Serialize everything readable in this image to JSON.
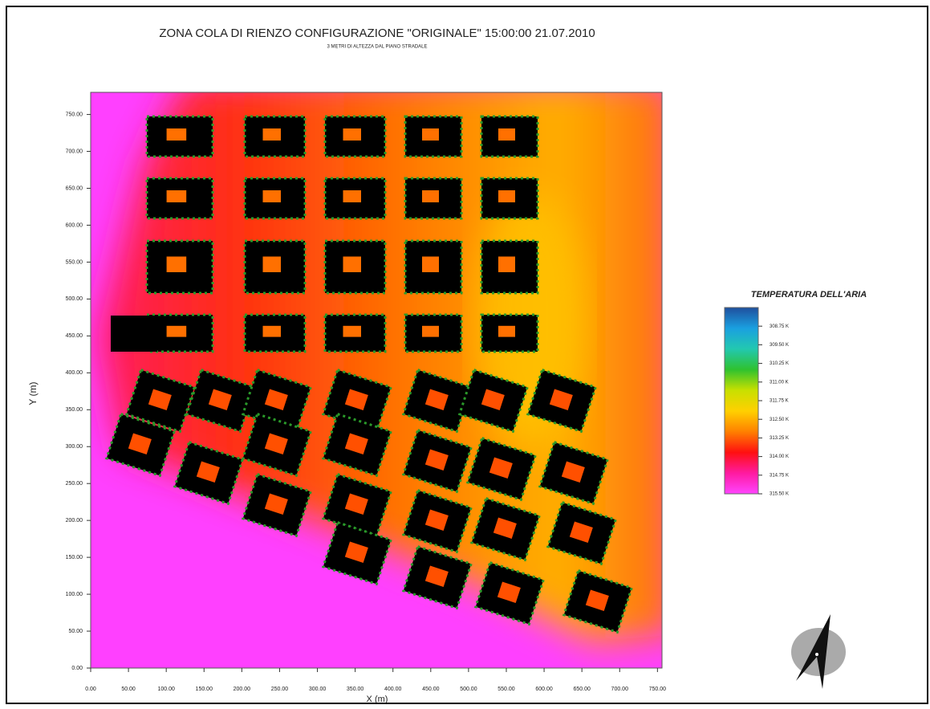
{
  "chart_data": {
    "type": "heatmap",
    "title": "ZONA COLA DI RIENZO CONFIGURAZIONE \"ORIGINALE\" 15:00:00 21.07.2010",
    "subtitle": "3 METRI DI ALTEZZA DAL PIANO STRADALE",
    "x_label": "X (m)",
    "y_label": "Y (m)",
    "xlim": [
      0,
      756
    ],
    "ylim": [
      0,
      780
    ],
    "xticks": [
      {
        "value": 0,
        "label": "0.00"
      },
      {
        "value": 50,
        "label": "50.00"
      },
      {
        "value": 100,
        "label": "100.00"
      },
      {
        "value": 150,
        "label": "150.00"
      },
      {
        "value": 200,
        "label": "200.00"
      },
      {
        "value": 250,
        "label": "250.00"
      },
      {
        "value": 300,
        "label": "300.00"
      },
      {
        "value": 350,
        "label": "350.00"
      },
      {
        "value": 400,
        "label": "400.00"
      },
      {
        "value": 450,
        "label": "450.00"
      },
      {
        "value": 500,
        "label": "500.00"
      },
      {
        "value": 550,
        "label": "550.00"
      },
      {
        "value": 600,
        "label": "600.00"
      },
      {
        "value": 650,
        "label": "650.00"
      },
      {
        "value": 700,
        "label": "700.00"
      },
      {
        "value": 750,
        "label": "750.00"
      }
    ],
    "yticks": [
      {
        "value": 0,
        "label": "0.00"
      },
      {
        "value": 50,
        "label": "50.00"
      },
      {
        "value": 100,
        "label": "100.00"
      },
      {
        "value": 150,
        "label": "150.00"
      },
      {
        "value": 200,
        "label": "200.00"
      },
      {
        "value": 250,
        "label": "250.00"
      },
      {
        "value": 300,
        "label": "300.00"
      },
      {
        "value": 350,
        "label": "350.00"
      },
      {
        "value": 400,
        "label": "400.00"
      },
      {
        "value": 450,
        "label": "450.00"
      },
      {
        "value": 500,
        "label": "500.00"
      },
      {
        "value": 550,
        "label": "550.00"
      },
      {
        "value": 600,
        "label": "600.00"
      },
      {
        "value": 650,
        "label": "650.00"
      },
      {
        "value": 700,
        "label": "700.00"
      },
      {
        "value": 750,
        "label": "750.00"
      }
    ],
    "colorbar": {
      "title": "TEMPERATURA DELL'ARIA",
      "clim": [
        308.0,
        315.5
      ],
      "colors": [
        "#1f4f9e",
        "#1aa0e0",
        "#22c8b0",
        "#2fc22f",
        "#c8e000",
        "#ffd000",
        "#ff8000",
        "#ff1010",
        "#ff1aa0",
        "#ff44ff"
      ],
      "ticks": [
        {
          "value": 308.75,
          "label": "308.75 K"
        },
        {
          "value": 309.5,
          "label": "309.50 K"
        },
        {
          "value": 310.25,
          "label": "310.25 K"
        },
        {
          "value": 311.0,
          "label": "311.00 K"
        },
        {
          "value": 311.75,
          "label": "311.75 K"
        },
        {
          "value": 312.5,
          "label": "312.50 K"
        },
        {
          "value": 313.25,
          "label": "313.25 K"
        },
        {
          "value": 314.0,
          "label": "314.00 K"
        },
        {
          "value": 314.75,
          "label": "314.75 K"
        },
        {
          "value": 315.5,
          "label": "315.50 K"
        }
      ]
    }
  }
}
